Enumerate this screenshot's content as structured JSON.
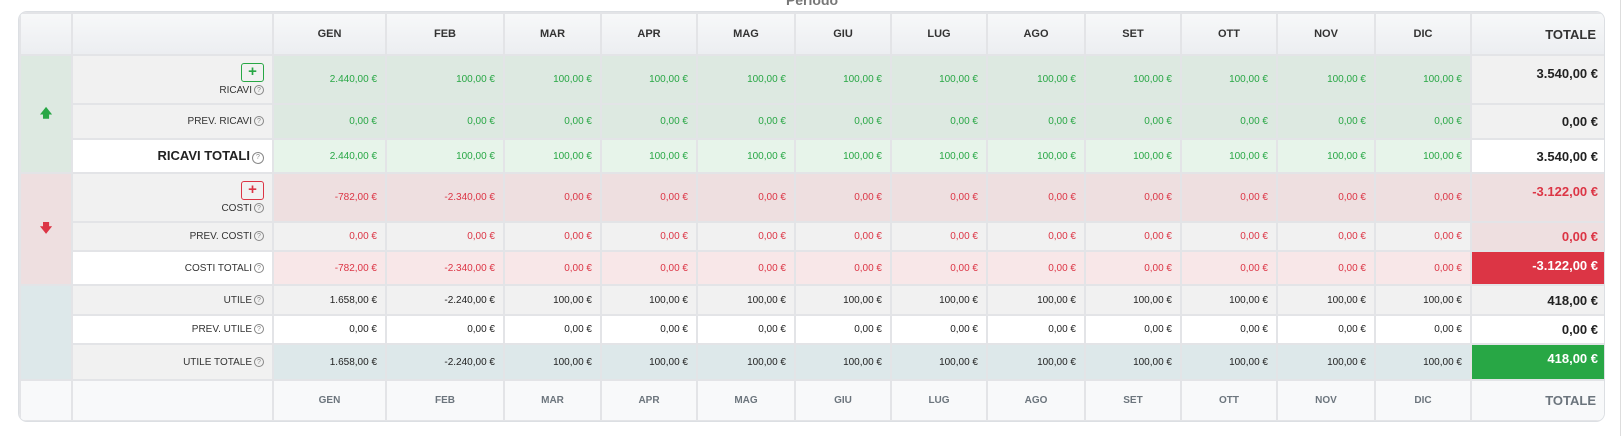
{
  "title": "Periodo",
  "months": [
    "GEN",
    "FEB",
    "MAR",
    "APR",
    "MAG",
    "GIU",
    "LUG",
    "AGO",
    "SET",
    "OTT",
    "NOV",
    "DIC"
  ],
  "total_label": "TOTALE",
  "icons": {
    "revenue": "arrow-up-icon",
    "costs": "arrow-down-icon",
    "add": "plus-icon",
    "help": "question-circle-icon"
  },
  "add_symbol": "+",
  "help_symbol": "?",
  "colors": {
    "green": "#28a745",
    "red": "#dc3545"
  },
  "rows": [
    {
      "label": "RICAVI",
      "values": [
        "2.440,00 €",
        "100,00 €",
        "100,00 €",
        "100,00 €",
        "100,00 €",
        "100,00 €",
        "100,00 €",
        "100,00 €",
        "100,00 €",
        "100,00 €",
        "100,00 €",
        "100,00 €"
      ],
      "total": "3.540,00 €"
    },
    {
      "label": "PREV. RICAVI",
      "values": [
        "0,00 €",
        "0,00 €",
        "0,00 €",
        "0,00 €",
        "0,00 €",
        "0,00 €",
        "0,00 €",
        "0,00 €",
        "0,00 €",
        "0,00 €",
        "0,00 €",
        "0,00 €"
      ],
      "total": "0,00 €"
    },
    {
      "label": "RICAVI TOTALI",
      "values": [
        "2.440,00 €",
        "100,00 €",
        "100,00 €",
        "100,00 €",
        "100,00 €",
        "100,00 €",
        "100,00 €",
        "100,00 €",
        "100,00 €",
        "100,00 €",
        "100,00 €",
        "100,00 €"
      ],
      "total": "3.540,00 €"
    },
    {
      "label": "COSTI",
      "values": [
        "-782,00 €",
        "-2.340,00 €",
        "0,00 €",
        "0,00 €",
        "0,00 €",
        "0,00 €",
        "0,00 €",
        "0,00 €",
        "0,00 €",
        "0,00 €",
        "0,00 €",
        "0,00 €"
      ],
      "total": "-3.122,00 €"
    },
    {
      "label": "PREV. COSTI",
      "values": [
        "0,00 €",
        "0,00 €",
        "0,00 €",
        "0,00 €",
        "0,00 €",
        "0,00 €",
        "0,00 €",
        "0,00 €",
        "0,00 €",
        "0,00 €",
        "0,00 €",
        "0,00 €"
      ],
      "total": "0,00 €"
    },
    {
      "label": "COSTI TOTALI",
      "values": [
        "-782,00 €",
        "-2.340,00 €",
        "0,00 €",
        "0,00 €",
        "0,00 €",
        "0,00 €",
        "0,00 €",
        "0,00 €",
        "0,00 €",
        "0,00 €",
        "0,00 €",
        "0,00 €"
      ],
      "total": "-3.122,00 €"
    },
    {
      "label": "UTILE",
      "values": [
        "1.658,00 €",
        "-2.240,00 €",
        "100,00 €",
        "100,00 €",
        "100,00 €",
        "100,00 €",
        "100,00 €",
        "100,00 €",
        "100,00 €",
        "100,00 €",
        "100,00 €",
        "100,00 €"
      ],
      "total": "418,00 €"
    },
    {
      "label": "PREV. UTILE",
      "values": [
        "0,00 €",
        "0,00 €",
        "0,00 €",
        "0,00 €",
        "0,00 €",
        "0,00 €",
        "0,00 €",
        "0,00 €",
        "0,00 €",
        "0,00 €",
        "0,00 €",
        "0,00 €"
      ],
      "total": "0,00 €"
    },
    {
      "label": "UTILE TOTALE",
      "values": [
        "1.658,00 €",
        "-2.240,00 €",
        "100,00 €",
        "100,00 €",
        "100,00 €",
        "100,00 €",
        "100,00 €",
        "100,00 €",
        "100,00 €",
        "100,00 €",
        "100,00 €",
        "100,00 €"
      ],
      "total": "418,00 €"
    }
  ]
}
